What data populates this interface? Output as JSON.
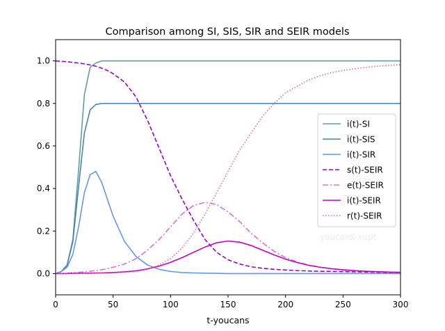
{
  "chart_data": {
    "type": "line",
    "title": "Comparison among SI, SIS, SIR and SEIR models",
    "xlabel": "t-youcans",
    "ylabel": "",
    "xlim": [
      0,
      300
    ],
    "ylim": [
      -0.1,
      1.1
    ],
    "xticks": [
      0,
      50,
      100,
      150,
      200,
      250,
      300
    ],
    "yticks": [
      0.0,
      0.2,
      0.4,
      0.6,
      0.8,
      1.0
    ],
    "xtick_labels": [
      "0",
      "50",
      "100",
      "150",
      "200",
      "250",
      "300"
    ],
    "ytick_labels": [
      "0.0",
      "0.2",
      "0.4",
      "0.6",
      "0.8",
      "1.0"
    ],
    "grid": false,
    "legend_position": "center-right",
    "watermark": "youcans-xupt",
    "x": [
      0,
      5,
      10,
      15,
      20,
      25,
      30,
      35,
      40,
      45,
      50,
      60,
      70,
      80,
      90,
      100,
      110,
      120,
      130,
      140,
      150,
      160,
      170,
      180,
      190,
      200,
      210,
      220,
      230,
      240,
      250,
      260,
      270,
      280,
      290,
      300
    ],
    "series": [
      {
        "name": "i(t)-SI",
        "color": "#5f9ea0",
        "style": "solid",
        "values": [
          0.0,
          0.01,
          0.04,
          0.16,
          0.49,
          0.84,
          0.97,
          0.99,
          1.0,
          1.0,
          1.0,
          1.0,
          1.0,
          1.0,
          1.0,
          1.0,
          1.0,
          1.0,
          1.0,
          1.0,
          1.0,
          1.0,
          1.0,
          1.0,
          1.0,
          1.0,
          1.0,
          1.0,
          1.0,
          1.0,
          1.0,
          1.0,
          1.0,
          1.0,
          1.0,
          1.0
        ]
      },
      {
        "name": "i(t)-SIS",
        "color": "#4682b4",
        "style": "solid",
        "values": [
          0.0,
          0.01,
          0.04,
          0.15,
          0.41,
          0.66,
          0.77,
          0.795,
          0.8,
          0.8,
          0.8,
          0.8,
          0.8,
          0.8,
          0.8,
          0.8,
          0.8,
          0.8,
          0.8,
          0.8,
          0.8,
          0.8,
          0.8,
          0.8,
          0.8,
          0.8,
          0.8,
          0.8,
          0.8,
          0.8,
          0.8,
          0.8,
          0.8,
          0.8,
          0.8,
          0.8
        ]
      },
      {
        "name": "i(t)-SIR",
        "color": "#6495ed",
        "style": "solid",
        "values": [
          0.0,
          0.01,
          0.03,
          0.09,
          0.22,
          0.38,
          0.465,
          0.48,
          0.43,
          0.35,
          0.27,
          0.15,
          0.08,
          0.04,
          0.02,
          0.01,
          0.005,
          0.003,
          0.002,
          0.001,
          0.0,
          0.0,
          0.0,
          0.0,
          0.0,
          0.0,
          0.0,
          0.0,
          0.0,
          0.0,
          0.0,
          0.0,
          0.0,
          0.0,
          0.0,
          0.0
        ]
      },
      {
        "name": "s(t)-SEIR",
        "color": "#9400d3",
        "style": "dashed",
        "values": [
          1.0,
          0.998,
          0.996,
          0.993,
          0.99,
          0.986,
          0.981,
          0.975,
          0.966,
          0.955,
          0.94,
          0.9,
          0.83,
          0.72,
          0.59,
          0.46,
          0.35,
          0.25,
          0.16,
          0.1,
          0.065,
          0.045,
          0.032,
          0.025,
          0.02,
          0.017,
          0.014,
          0.012,
          0.011,
          0.01,
          0.009,
          0.008,
          0.007,
          0.006,
          0.005,
          0.005
        ]
      },
      {
        "name": "e(t)-SEIR",
        "color": "#da70d6",
        "style": "dashdot",
        "values": [
          0.0,
          0.001,
          0.002,
          0.004,
          0.006,
          0.008,
          0.011,
          0.014,
          0.018,
          0.023,
          0.03,
          0.045,
          0.07,
          0.11,
          0.16,
          0.22,
          0.28,
          0.32,
          0.335,
          0.325,
          0.29,
          0.245,
          0.19,
          0.145,
          0.105,
          0.075,
          0.055,
          0.04,
          0.03,
          0.022,
          0.017,
          0.013,
          0.01,
          0.008,
          0.006,
          0.005
        ]
      },
      {
        "name": "i(t)-SEIR",
        "color": "#c000c0",
        "style": "solid",
        "values": [
          0.0,
          0.0,
          0.0,
          0.001,
          0.001,
          0.002,
          0.002,
          0.003,
          0.003,
          0.004,
          0.005,
          0.008,
          0.013,
          0.022,
          0.035,
          0.053,
          0.075,
          0.1,
          0.125,
          0.145,
          0.153,
          0.148,
          0.132,
          0.11,
          0.088,
          0.068,
          0.052,
          0.039,
          0.03,
          0.023,
          0.018,
          0.014,
          0.011,
          0.009,
          0.007,
          0.006
        ]
      },
      {
        "name": "r(t)-SEIR",
        "color": "#e56a8a",
        "style": "dotted",
        "values": [
          0.0,
          0.0,
          0.0,
          0.0,
          0.0,
          0.001,
          0.001,
          0.001,
          0.002,
          0.002,
          0.003,
          0.006,
          0.01,
          0.02,
          0.04,
          0.07,
          0.12,
          0.19,
          0.28,
          0.38,
          0.48,
          0.58,
          0.66,
          0.74,
          0.8,
          0.85,
          0.88,
          0.91,
          0.93,
          0.945,
          0.955,
          0.963,
          0.97,
          0.975,
          0.979,
          0.982
        ]
      }
    ]
  }
}
